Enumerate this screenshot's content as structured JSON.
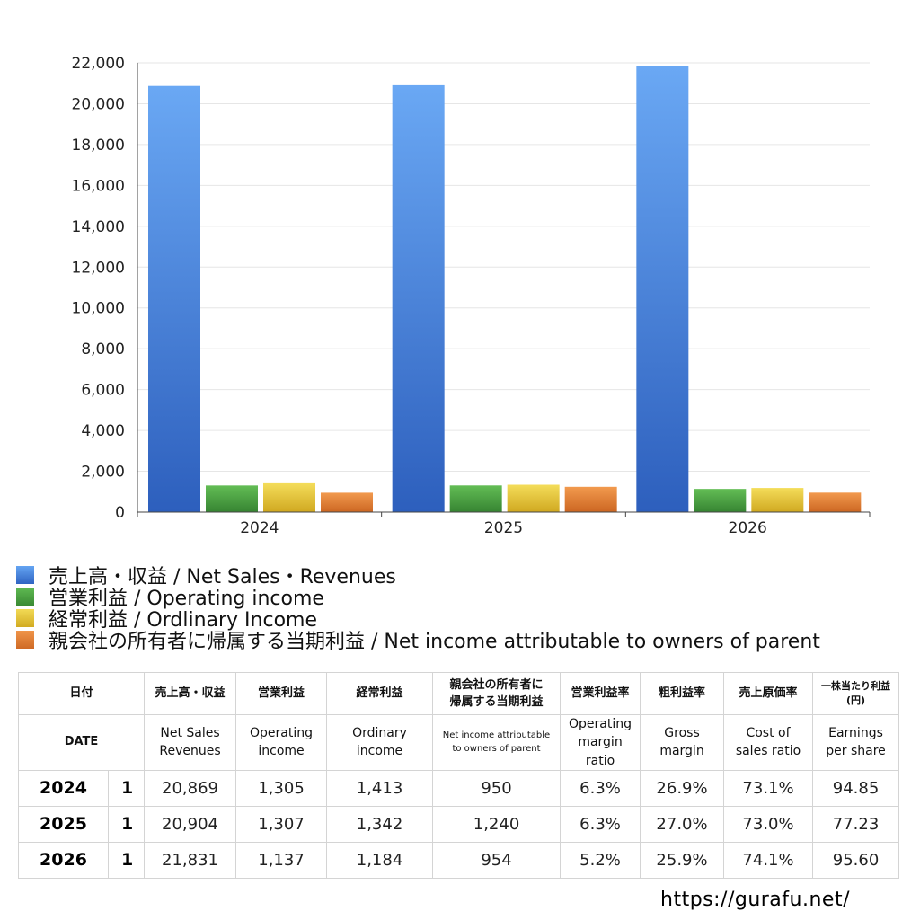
{
  "chart_data": {
    "type": "bar",
    "categories": [
      "2024",
      "2025",
      "2026"
    ],
    "series": [
      {
        "name": "売上高・収益 / Net Sales・Revenues",
        "values": [
          20869,
          20904,
          21831
        ],
        "color": "#4a86dc"
      },
      {
        "name": "営業利益 / Operating income",
        "values": [
          1305,
          1307,
          1137
        ],
        "color": "#4fa544"
      },
      {
        "name": "経常利益 / Ordlinary Income",
        "values": [
          1413,
          1342,
          1184
        ],
        "color": "#e3c535"
      },
      {
        "name": "親会社の所有者に帰属する当期利益 / Net income attributable to owners of parent",
        "values": [
          950,
          1240,
          954
        ],
        "color": "#e07f33"
      }
    ],
    "ylim": [
      0,
      22000
    ],
    "yticks": [
      "0",
      "2,000",
      "4,000",
      "6,000",
      "8,000",
      "10,000",
      "12,000",
      "14,000",
      "16,000",
      "18,000",
      "20,000",
      "22,000"
    ],
    "ytick_values": [
      0,
      2000,
      4000,
      6000,
      8000,
      10000,
      12000,
      14000,
      16000,
      18000,
      20000,
      22000
    ],
    "grid": true,
    "legend_position": "bottom",
    "title": "",
    "xlabel": "",
    "ylabel": ""
  },
  "legend": [
    {
      "label": "売上高・収益 / Net Sales・Revenues",
      "color": "#4a86dc"
    },
    {
      "label": "営業利益 / Operating income",
      "color": "#4fa544"
    },
    {
      "label": "経常利益 / Ordlinary Income",
      "color": "#e3c535"
    },
    {
      "label": "親会社の所有者に帰属する当期利益 / Net income attributable to owners of parent",
      "color": "#e07f33"
    }
  ],
  "table": {
    "header_jp": {
      "date": "日付",
      "net_sales": "売上高・収益",
      "operating_income": "営業利益",
      "ordinary_income": "経常利益",
      "net_income_line1": "親会社の所有者に",
      "net_income_line2": "帰属する当期利益",
      "operating_margin": "営業利益率",
      "gross_margin": "粗利益率",
      "cost_ratio": "売上原価率",
      "eps_line1": "一株当たり利益",
      "eps_line2": "(円)"
    },
    "header_en": {
      "date": "DATE",
      "net_sales_line1": "Net Sales",
      "net_sales_line2": "Revenues",
      "operating_income_line1": "Operating",
      "operating_income_line2": "income",
      "ordinary_income_line1": "Ordinary",
      "ordinary_income_line2": "income",
      "net_income_line1": "Net income attributable",
      "net_income_line2": "to owners of parent",
      "operating_margin_line1": "Operating",
      "operating_margin_line2": "margin",
      "operating_margin_line3": "ratio",
      "gross_margin_line1": "Gross",
      "gross_margin_line2": "margin",
      "cost_ratio_line1": "Cost of",
      "cost_ratio_line2": "sales ratio",
      "eps_line1": "Earnings",
      "eps_line2": "per share"
    },
    "rows": [
      {
        "year": "2024",
        "month": "1",
        "net_sales": "20,869",
        "operating_income": "1,305",
        "ordinary_income": "1,413",
        "net_income": "950",
        "operating_margin": "6.3%",
        "gross_margin": "26.9%",
        "cost_ratio": "73.1%",
        "eps": "94.85"
      },
      {
        "year": "2025",
        "month": "1",
        "net_sales": "20,904",
        "operating_income": "1,307",
        "ordinary_income": "1,342",
        "net_income": "1,240",
        "operating_margin": "6.3%",
        "gross_margin": "27.0%",
        "cost_ratio": "73.0%",
        "eps": "77.23"
      },
      {
        "year": "2026",
        "month": "1",
        "net_sales": "21,831",
        "operating_income": "1,137",
        "ordinary_income": "1,184",
        "net_income": "954",
        "operating_margin": "5.2%",
        "gross_margin": "25.9%",
        "cost_ratio": "74.1%",
        "eps": "95.60"
      }
    ]
  },
  "footer": {
    "url": "https://gurafu.net/"
  }
}
